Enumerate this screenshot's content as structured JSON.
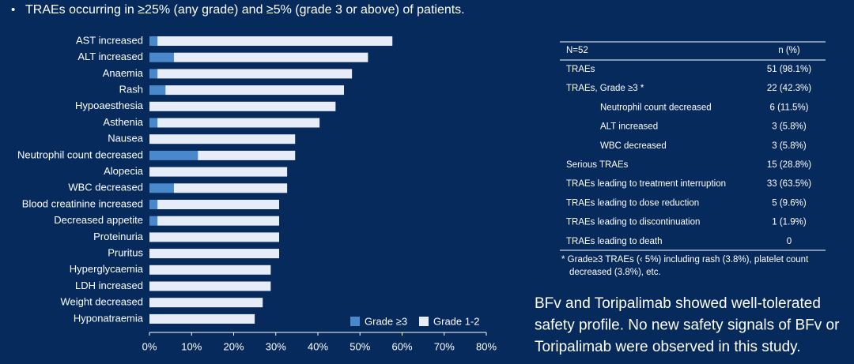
{
  "header": {
    "text": "TRAEs occurring in ≥25% (any grade) and ≥5% (grade 3 or above) of patients."
  },
  "chart_data": {
    "type": "stacked-barh",
    "categories": [
      "AST increased",
      "ALT increased",
      "Anaemia",
      "Rash",
      "Hypoaesthesia",
      "Asthenia",
      "Nausea",
      "Neutrophil count decreased",
      "Alopecia",
      "WBC decreased",
      "Blood creatinine increased",
      "Decreased appetite",
      "Proteinuria",
      "Pruritus",
      "Hyperglycaemia",
      "LDH increased",
      "Weight decreased",
      "Hyponatraemia"
    ],
    "series": [
      {
        "name": "Grade ≥3",
        "color": "#4a88cc",
        "values": [
          1.9,
          5.8,
          1.9,
          3.8,
          0,
          1.9,
          0,
          11.5,
          0,
          5.8,
          1.9,
          1.9,
          0,
          0,
          0,
          0,
          0,
          0
        ]
      },
      {
        "name": "Grade 1-2",
        "color": "#e6edf8",
        "values": [
          55.8,
          46.1,
          46.2,
          42.4,
          44.2,
          38.5,
          34.6,
          23.1,
          32.7,
          26.9,
          28.9,
          28.9,
          30.8,
          30.8,
          28.8,
          28.8,
          26.9,
          25.0
        ]
      }
    ],
    "xlim": [
      0,
      80
    ],
    "xticks": [
      {
        "value": 0,
        "label": "0%"
      },
      {
        "value": 10,
        "label": "10%"
      },
      {
        "value": 20,
        "label": "20%"
      },
      {
        "value": 30,
        "label": "30%"
      },
      {
        "value": 40,
        "label": "40%"
      },
      {
        "value": 50,
        "label": "50%"
      },
      {
        "value": 60,
        "label": "60%"
      },
      {
        "value": 70,
        "label": "70%"
      },
      {
        "value": 80,
        "label": "80%"
      }
    ],
    "legend": "lower right"
  },
  "table": {
    "header": [
      "N=52",
      "n (%)"
    ],
    "rows": [
      [
        "TRAEs",
        "51 (98.1%)"
      ],
      [
        "TRAEs, Grade ≥3 *",
        "22 (42.3%)"
      ],
      [
        "Neutrophil count decreased",
        "6 (11.5%)"
      ],
      [
        "ALT increased",
        "3 (5.8%)"
      ],
      [
        "WBC decreased",
        "3 (5.8%)"
      ],
      [
        "Serious TRAEs",
        "15 (28.8%)"
      ],
      [
        "TRAEs leading to treatment interruption",
        "33 (63.5%)"
      ],
      [
        "TRAEs leading to dose reduction",
        "5 (9.6%)"
      ],
      [
        "TRAEs leading to discontinuation",
        "1 (1.9%)"
      ],
      [
        "TRAEs leading to death",
        "0"
      ]
    ],
    "footnote": [
      "* Grade≥3 TRAEs (‹ 5%) including rash (3.8%), platelet count",
      "decreased (3.8%), etc."
    ]
  },
  "conclusion": [
    "BFv and Toripalimab showed well-tolerated",
    "safety profile. No new safety signals of BFv or",
    "Toripalimab were observed in this study."
  ]
}
